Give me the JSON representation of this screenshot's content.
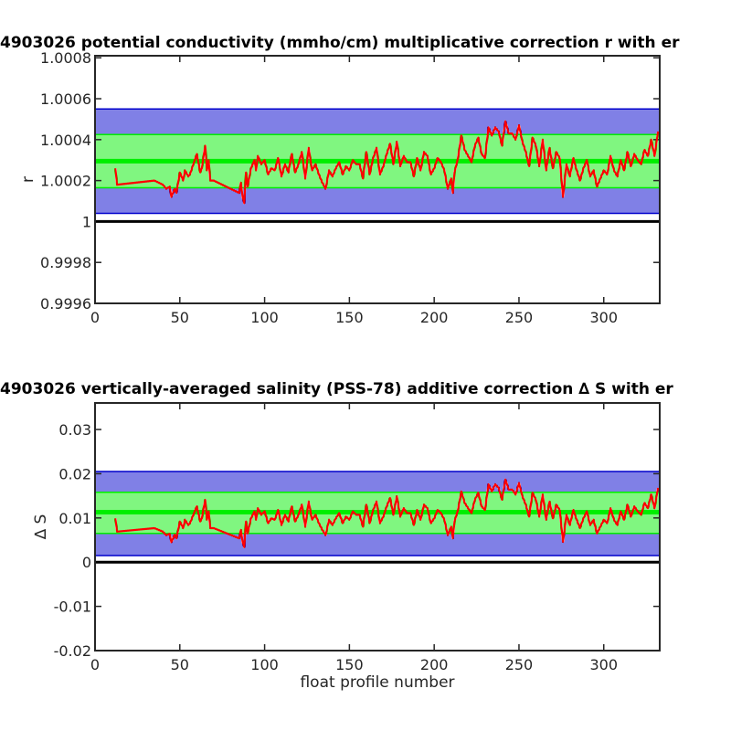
{
  "chart_data": [
    {
      "type": "line",
      "title": "4903026 potential conductivity (mmho/cm) multiplicative correction r with er",
      "xlabel": "",
      "ylabel": "r",
      "xlim": [
        0,
        333
      ],
      "ylim": [
        0.9996,
        1.00081
      ],
      "xticks": [
        "0",
        "50",
        "100",
        "150",
        "200",
        "250",
        "300"
      ],
      "yticks": [
        "0.9996",
        "0.9998",
        "1",
        "1.0002",
        "1.0004",
        "1.0006",
        "1.0008"
      ],
      "reference_line": 1.0,
      "error_bands": {
        "outer_2sigma": {
          "color": "#0000cc",
          "lower": 1.00004,
          "upper": 1.00055
        },
        "inner_1sigma": {
          "color": "#00ee00",
          "lower": 1.000165,
          "upper": 1.000425
        },
        "center": 1.000295
      },
      "series": [
        {
          "color": "#ff0000",
          "x": [
            12,
            13,
            35,
            40,
            42,
            44,
            45,
            47,
            48,
            50,
            52,
            53,
            55,
            56,
            58,
            60,
            62,
            63,
            64,
            65,
            66,
            67,
            68,
            70,
            85,
            86,
            87,
            88,
            89,
            90,
            92,
            94,
            95,
            96,
            98,
            100,
            102,
            104,
            106,
            108,
            110,
            112,
            114,
            116,
            118,
            120,
            122,
            124,
            126,
            128,
            130,
            132,
            134,
            136,
            138,
            140,
            142,
            144,
            146,
            148,
            150,
            152,
            154,
            156,
            158,
            160,
            162,
            164,
            166,
            168,
            170,
            172,
            174,
            176,
            178,
            180,
            182,
            184,
            186,
            188,
            190,
            192,
            194,
            196,
            198,
            200,
            202,
            204,
            206,
            208,
            210,
            211,
            212,
            214,
            216,
            218,
            220,
            222,
            224,
            226,
            228,
            230,
            232,
            234,
            236,
            238,
            240,
            242,
            244,
            246,
            248,
            250,
            252,
            254,
            256,
            258,
            260,
            262,
            264,
            266,
            268,
            270,
            272,
            274,
            276,
            278,
            280,
            282,
            284,
            286,
            288,
            290,
            292,
            294,
            296,
            298,
            300,
            302,
            304,
            306,
            308,
            310,
            312,
            314,
            316,
            318,
            320,
            322,
            324,
            326,
            328,
            330,
            332
          ],
          "values": [
            1.00026,
            1.00018,
            1.0002,
            1.00018,
            1.00016,
            1.00017,
            1.00012,
            1.00016,
            1.00014,
            1.00024,
            1.0002,
            1.00025,
            1.00022,
            1.00023,
            1.00028,
            1.00033,
            1.00024,
            1.00026,
            1.00032,
            1.00037,
            1.00025,
            1.0003,
            1.0002,
            1.0002,
            1.00014,
            1.00019,
            1.00012,
            1.00009,
            1.00024,
            1.00017,
            1.00026,
            1.0003,
            1.00025,
            1.00032,
            1.00028,
            1.0003,
            1.00023,
            1.00026,
            1.00025,
            1.00031,
            1.00022,
            1.00028,
            1.00024,
            1.00033,
            1.00024,
            1.00028,
            1.00034,
            1.00021,
            1.00036,
            1.00025,
            1.00028,
            1.00023,
            1.00019,
            1.00016,
            1.00025,
            1.00022,
            1.00026,
            1.00029,
            1.00023,
            1.00027,
            1.00025,
            1.0003,
            1.00028,
            1.00028,
            1.00021,
            1.00034,
            1.00023,
            1.00031,
            1.00036,
            1.00023,
            1.00027,
            1.00033,
            1.00038,
            1.00028,
            1.00039,
            1.00027,
            1.00032,
            1.00029,
            1.00029,
            1.00022,
            1.00031,
            1.00025,
            1.00034,
            1.00032,
            1.00023,
            1.00026,
            1.00031,
            1.00029,
            1.00025,
            1.00016,
            1.00021,
            1.00014,
            1.00024,
            1.00031,
            1.00042,
            1.00035,
            1.00032,
            1.00029,
            1.00037,
            1.00041,
            1.00033,
            1.00031,
            1.00046,
            1.00042,
            1.00046,
            1.00044,
            1.00037,
            1.00049,
            1.00043,
            1.00043,
            1.0004,
            1.00047,
            1.00039,
            1.00034,
            1.00027,
            1.00041,
            1.00037,
            1.00027,
            1.0004,
            1.00025,
            1.00036,
            1.00026,
            1.00034,
            1.00031,
            1.00012,
            1.00028,
            1.00022,
            1.00031,
            1.00025,
            1.0002,
            1.00026,
            1.0003,
            1.00022,
            1.00025,
            1.00017,
            1.00021,
            1.00025,
            1.00023,
            1.00032,
            1.00025,
            1.00022,
            1.0003,
            1.00025,
            1.00034,
            1.00027,
            1.00033,
            1.0003,
            1.00028,
            1.00035,
            1.00032,
            1.0004,
            1.00032,
            1.00044
          ]
        }
      ]
    },
    {
      "type": "line",
      "title": "4903026 vertically-averaged salinity (PSS-78) additive correction ∆ S with er",
      "xlabel": "float profile number",
      "ylabel": "∆ S",
      "xlim": [
        0,
        333
      ],
      "ylim": [
        -0.02,
        0.036
      ],
      "xticks": [
        "0",
        "50",
        "100",
        "150",
        "200",
        "250",
        "300"
      ],
      "yticks": [
        "-0.02",
        "-0.01",
        "0",
        "0.01",
        "0.02",
        "0.03"
      ],
      "reference_line": 0,
      "error_bands": {
        "outer_2sigma": {
          "color": "#0000cc",
          "lower": 0.0015,
          "upper": 0.0205
        },
        "inner_1sigma": {
          "color": "#00ee00",
          "lower": 0.0065,
          "upper": 0.0158
        },
        "center": 0.0113
      },
      "series": [
        {
          "color": "#ff0000",
          "x": [
            12,
            13,
            35,
            40,
            42,
            44,
            45,
            47,
            48,
            50,
            52,
            53,
            55,
            56,
            58,
            60,
            62,
            63,
            64,
            65,
            66,
            67,
            68,
            70,
            85,
            86,
            87,
            88,
            89,
            90,
            92,
            94,
            95,
            96,
            98,
            100,
            102,
            104,
            106,
            108,
            110,
            112,
            114,
            116,
            118,
            120,
            122,
            124,
            126,
            128,
            130,
            132,
            134,
            136,
            138,
            140,
            142,
            144,
            146,
            148,
            150,
            152,
            154,
            156,
            158,
            160,
            162,
            164,
            166,
            168,
            170,
            172,
            174,
            176,
            178,
            180,
            182,
            184,
            186,
            188,
            190,
            192,
            194,
            196,
            198,
            200,
            202,
            204,
            206,
            208,
            210,
            211,
            212,
            214,
            216,
            218,
            220,
            222,
            224,
            226,
            228,
            230,
            232,
            234,
            236,
            238,
            240,
            242,
            244,
            246,
            248,
            250,
            252,
            254,
            256,
            258,
            260,
            262,
            264,
            266,
            268,
            270,
            272,
            274,
            276,
            278,
            280,
            282,
            284,
            286,
            288,
            290,
            292,
            294,
            296,
            298,
            300,
            302,
            304,
            306,
            308,
            310,
            312,
            314,
            316,
            318,
            320,
            322,
            324,
            326,
            328,
            330,
            332
          ],
          "values": [
            0.0099,
            0.0069,
            0.0077,
            0.0069,
            0.0061,
            0.0064,
            0.0045,
            0.0062,
            0.0054,
            0.0092,
            0.0077,
            0.0096,
            0.0084,
            0.0088,
            0.0107,
            0.0126,
            0.0092,
            0.0099,
            0.0122,
            0.0141,
            0.0096,
            0.0115,
            0.0077,
            0.0077,
            0.0054,
            0.0073,
            0.0046,
            0.0034,
            0.0092,
            0.0065,
            0.0099,
            0.0115,
            0.0096,
            0.0122,
            0.0107,
            0.0115,
            0.0088,
            0.0099,
            0.0096,
            0.0118,
            0.0084,
            0.0107,
            0.0092,
            0.0126,
            0.0092,
            0.0107,
            0.013,
            0.008,
            0.0137,
            0.0096,
            0.0107,
            0.0088,
            0.0073,
            0.0061,
            0.0096,
            0.0084,
            0.0099,
            0.0111,
            0.0088,
            0.0103,
            0.0096,
            0.0115,
            0.0107,
            0.0107,
            0.008,
            0.013,
            0.0088,
            0.0118,
            0.0137,
            0.0088,
            0.0103,
            0.0126,
            0.0145,
            0.0107,
            0.0149,
            0.0103,
            0.0122,
            0.0111,
            0.0111,
            0.0084,
            0.0118,
            0.0096,
            0.013,
            0.0122,
            0.0088,
            0.0099,
            0.0118,
            0.0111,
            0.0096,
            0.0061,
            0.008,
            0.0054,
            0.0092,
            0.0118,
            0.016,
            0.0134,
            0.0122,
            0.0111,
            0.0141,
            0.0157,
            0.0126,
            0.0118,
            0.0176,
            0.016,
            0.0176,
            0.0168,
            0.0141,
            0.0187,
            0.0164,
            0.0164,
            0.0153,
            0.0179,
            0.0149,
            0.013,
            0.0103,
            0.0157,
            0.0141,
            0.0103,
            0.0153,
            0.0096,
            0.0137,
            0.0099,
            0.013,
            0.0118,
            0.0046,
            0.0107,
            0.0084,
            0.0118,
            0.0096,
            0.0077,
            0.0099,
            0.0115,
            0.0084,
            0.0096,
            0.0065,
            0.008,
            0.0096,
            0.0088,
            0.0122,
            0.0096,
            0.0084,
            0.0115,
            0.0096,
            0.013,
            0.0103,
            0.0126,
            0.0115,
            0.0107,
            0.0134,
            0.0122,
            0.0153,
            0.0122,
            0.0168
          ]
        }
      ]
    }
  ]
}
